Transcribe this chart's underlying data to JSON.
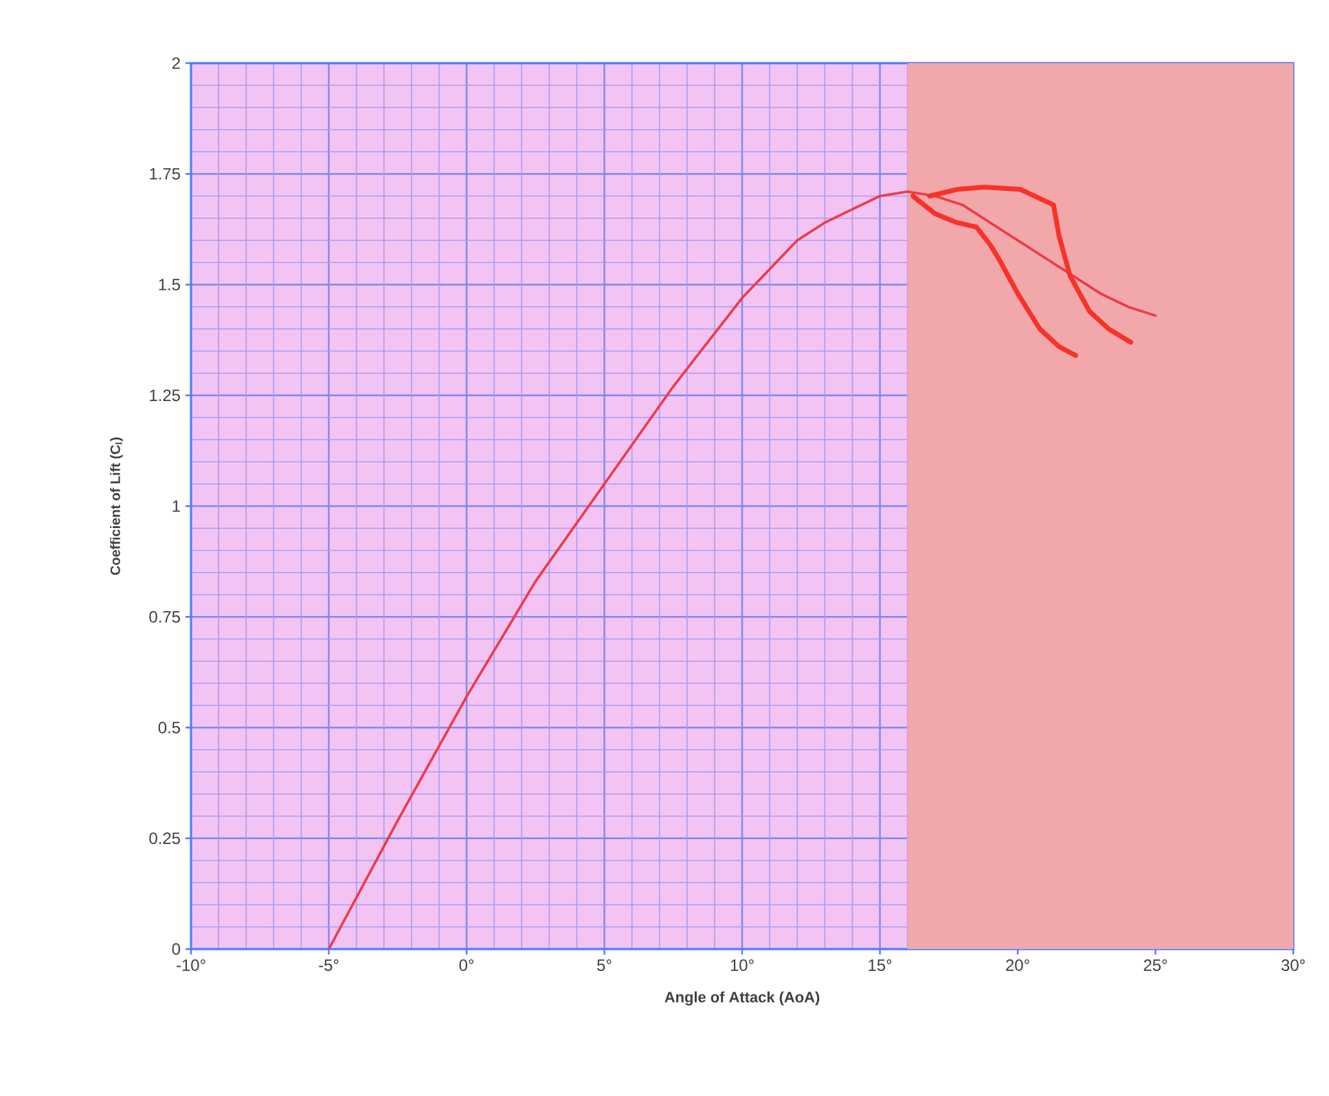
{
  "chart_data": {
    "type": "line",
    "xlabel": "Angle of Attack (AoA)",
    "ylabel": "Coefficient of Lift (C$_{l}$)",
    "xlim": [
      -10,
      30
    ],
    "ylim": [
      0,
      2
    ],
    "xticks": [
      {
        "value": -10,
        "label": "-10°"
      },
      {
        "value": -9,
        "label": null
      },
      {
        "value": -8,
        "label": null
      },
      {
        "value": -7,
        "label": null
      },
      {
        "value": -6,
        "label": null
      },
      {
        "value": -5,
        "label": "-5°"
      },
      {
        "value": -4,
        "label": null
      },
      {
        "value": -3,
        "label": null
      },
      {
        "value": -2,
        "label": null
      },
      {
        "value": -1,
        "label": null
      },
      {
        "value": 0,
        "label": "0°"
      },
      {
        "value": 1,
        "label": null
      },
      {
        "value": 2,
        "label": null
      },
      {
        "value": 3,
        "label": null
      },
      {
        "value": 4,
        "label": null
      },
      {
        "value": 5,
        "label": "5°"
      },
      {
        "value": 6,
        "label": null
      },
      {
        "value": 7,
        "label": null
      },
      {
        "value": 8,
        "label": null
      },
      {
        "value": 9,
        "label": null
      },
      {
        "value": 10,
        "label": "10°"
      },
      {
        "value": 11,
        "label": null
      },
      {
        "value": 12,
        "label": null
      },
      {
        "value": 13,
        "label": null
      },
      {
        "value": 14,
        "label": null
      },
      {
        "value": 15,
        "label": "15°"
      },
      {
        "value": 16,
        "label": null
      },
      {
        "value": 17,
        "label": null
      },
      {
        "value": 18,
        "label": null
      },
      {
        "value": 19,
        "label": null
      },
      {
        "value": 20,
        "label": "20°"
      },
      {
        "value": 21,
        "label": null
      },
      {
        "value": 22,
        "label": null
      },
      {
        "value": 23,
        "label": null
      },
      {
        "value": 24,
        "label": null
      },
      {
        "value": 25,
        "label": "25°"
      },
      {
        "value": 26,
        "label": null
      },
      {
        "value": 27,
        "label": null
      },
      {
        "value": 28,
        "label": null
      },
      {
        "value": 29,
        "label": null
      },
      {
        "value": 30,
        "label": "30°"
      }
    ],
    "yticks": [
      0,
      {
        "value": 0.05,
        "label": null
      },
      {
        "value": 0.1,
        "label": null
      },
      {
        "value": 0.15,
        "label": null
      },
      {
        "value": 0.2,
        "label": null
      },
      0.25,
      {
        "value": 0.3,
        "label": null
      },
      {
        "value": 0.35,
        "label": null
      },
      {
        "value": 0.4,
        "label": null
      },
      {
        "value": 0.45,
        "label": null
      },
      0.5,
      {
        "value": 0.55,
        "label": null
      },
      {
        "value": 0.6,
        "label": null
      },
      {
        "value": 0.65,
        "label": null
      },
      {
        "value": 0.7,
        "label": null
      },
      0.75,
      {
        "value": 0.8,
        "label": null
      },
      {
        "value": 0.85,
        "label": null
      },
      {
        "value": 0.9,
        "label": null
      },
      {
        "value": 0.95,
        "label": null
      },
      1,
      {
        "value": 1.05,
        "label": null
      },
      {
        "value": 1.1,
        "label": null
      },
      {
        "value": 1.15,
        "label": null
      },
      {
        "value": 1.2,
        "label": null
      },
      1.25,
      {
        "value": 1.3,
        "label": null
      },
      {
        "value": 1.35,
        "label": null
      },
      {
        "value": 1.4,
        "label": null
      },
      {
        "value": 1.45,
        "label": null
      },
      1.5,
      {
        "value": 1.55,
        "label": null
      },
      {
        "value": 1.6,
        "label": null
      },
      {
        "value": 1.65,
        "label": null
      },
      {
        "value": 1.7,
        "label": null
      },
      1.75,
      {
        "value": 1.8,
        "label": null
      },
      {
        "value": 1.85,
        "label": null
      },
      {
        "value": 1.9,
        "label": null
      },
      {
        "value": 1.95,
        "label": null
      },
      2
    ],
    "grid": true,
    "marker": "none",
    "line_style": "solid",
    "bands": [
      {
        "axis": "x",
        "from": 16,
        "to": 30,
        "color": "#f2a8aa"
      }
    ],
    "series": [
      {
        "color": "#ee3a4a",
        "x": [
          -5,
          -2.5,
          0,
          2.5,
          5,
          7.5,
          10,
          12,
          13,
          14,
          15,
          16,
          17,
          18,
          19,
          20,
          21,
          22,
          23,
          24,
          25
        ],
        "values": [
          0,
          0.29,
          0.57,
          0.83,
          1.05,
          1.27,
          1.47,
          1.6,
          1.64,
          1.67,
          1.7,
          1.71,
          1.7,
          1.68,
          1.64,
          1.6,
          1.56,
          1.52,
          1.48,
          1.45,
          1.43
        ]
      },
      {
        "color": "#f83228",
        "x": [
          16.2,
          17,
          17.8,
          18.5,
          19,
          19.3,
          20,
          20.8,
          21.5,
          22.1
        ],
        "values": [
          1.7,
          1.66,
          1.64,
          1.63,
          1.59,
          1.56,
          1.48,
          1.4,
          1.36,
          1.34
        ]
      },
      {
        "color": "#f83228",
        "x": [
          16.8,
          17.8,
          18.8,
          20.1,
          21.3,
          21.5,
          21.9,
          22.6,
          23.3,
          24.1
        ],
        "values": [
          1.7,
          1.715,
          1.72,
          1.715,
          1.68,
          1.61,
          1.52,
          1.44,
          1.4,
          1.37
        ]
      }
    ]
  }
}
